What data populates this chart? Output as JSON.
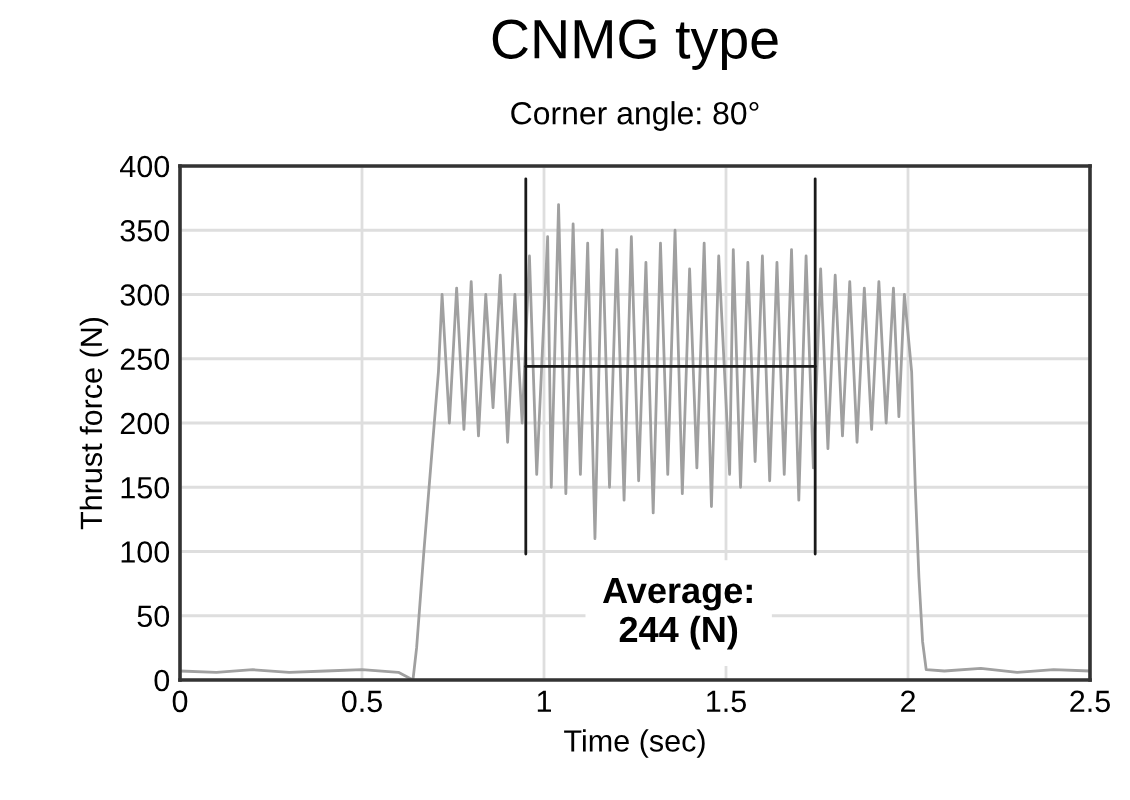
{
  "chart_data": {
    "type": "line",
    "title": "CNMG type",
    "subtitle": "Corner angle: 80°",
    "xlabel": "Time (sec)",
    "ylabel": "Thrust force (N)",
    "series": [
      {
        "color": "#a0a0a0",
        "x": [
          0,
          0.1,
          0.2,
          0.3,
          0.4,
          0.5,
          0.6,
          0.64,
          0.65,
          0.67,
          0.69,
          0.71,
          0.72,
          0.74,
          0.76,
          0.78,
          0.8,
          0.82,
          0.84,
          0.86,
          0.88,
          0.9,
          0.92,
          0.94,
          0.96,
          0.98,
          1.01,
          1.02,
          1.04,
          1.06,
          1.08,
          1.1,
          1.12,
          1.14,
          1.16,
          1.18,
          1.2,
          1.22,
          1.24,
          1.26,
          1.28,
          1.3,
          1.32,
          1.34,
          1.36,
          1.38,
          1.4,
          1.42,
          1.44,
          1.46,
          1.48,
          1.51,
          1.52,
          1.54,
          1.56,
          1.58,
          1.6,
          1.62,
          1.64,
          1.66,
          1.68,
          1.7,
          1.72,
          1.74,
          1.76,
          1.78,
          1.8,
          1.82,
          1.84,
          1.86,
          1.88,
          1.9,
          1.92,
          1.94,
          1.96,
          1.975,
          1.99,
          2.01,
          2.02,
          2.03,
          2.04,
          2.05,
          2.1,
          2.2,
          2.3,
          2.4,
          2.5
        ],
        "values": [
          7,
          6,
          8,
          6,
          7,
          8,
          6,
          0,
          25,
          100,
          170,
          240,
          300,
          200,
          305,
          195,
          310,
          190,
          300,
          212,
          315,
          185,
          300,
          200,
          330,
          160,
          345,
          150,
          370,
          145,
          355,
          160,
          340,
          110,
          350,
          150,
          335,
          140,
          345,
          155,
          325,
          130,
          340,
          160,
          350,
          145,
          320,
          165,
          340,
          135,
          330,
          160,
          335,
          150,
          325,
          170,
          330,
          155,
          325,
          160,
          335,
          140,
          330,
          165,
          320,
          180,
          315,
          190,
          310,
          185,
          305,
          195,
          310,
          200,
          305,
          205,
          300,
          240,
          150,
          80,
          30,
          8,
          7,
          9,
          6,
          8,
          7
        ]
      },
      {
        "color": "#1a1a1a",
        "x": [
          0.95,
          0.95
        ],
        "values": [
          98,
          390
        ]
      },
      {
        "color": "#1a1a1a",
        "x": [
          1.745,
          1.745
        ],
        "values": [
          98,
          390
        ]
      },
      {
        "color": "#1a1a1a",
        "x": [
          0.95,
          1.745
        ],
        "values": [
          244,
          244
        ]
      }
    ],
    "annotations": [
      "Average:\n244 (N)"
    ],
    "xlim": [
      0,
      2.5
    ],
    "xticks": [
      0,
      0.5,
      1,
      1.5,
      2,
      2.5
    ],
    "ylim": [
      0,
      400
    ],
    "yticks": [
      0,
      50,
      100,
      150,
      200,
      250,
      300,
      350,
      400
    ],
    "grid": true,
    "line_style": "solid",
    "marker": "none"
  }
}
